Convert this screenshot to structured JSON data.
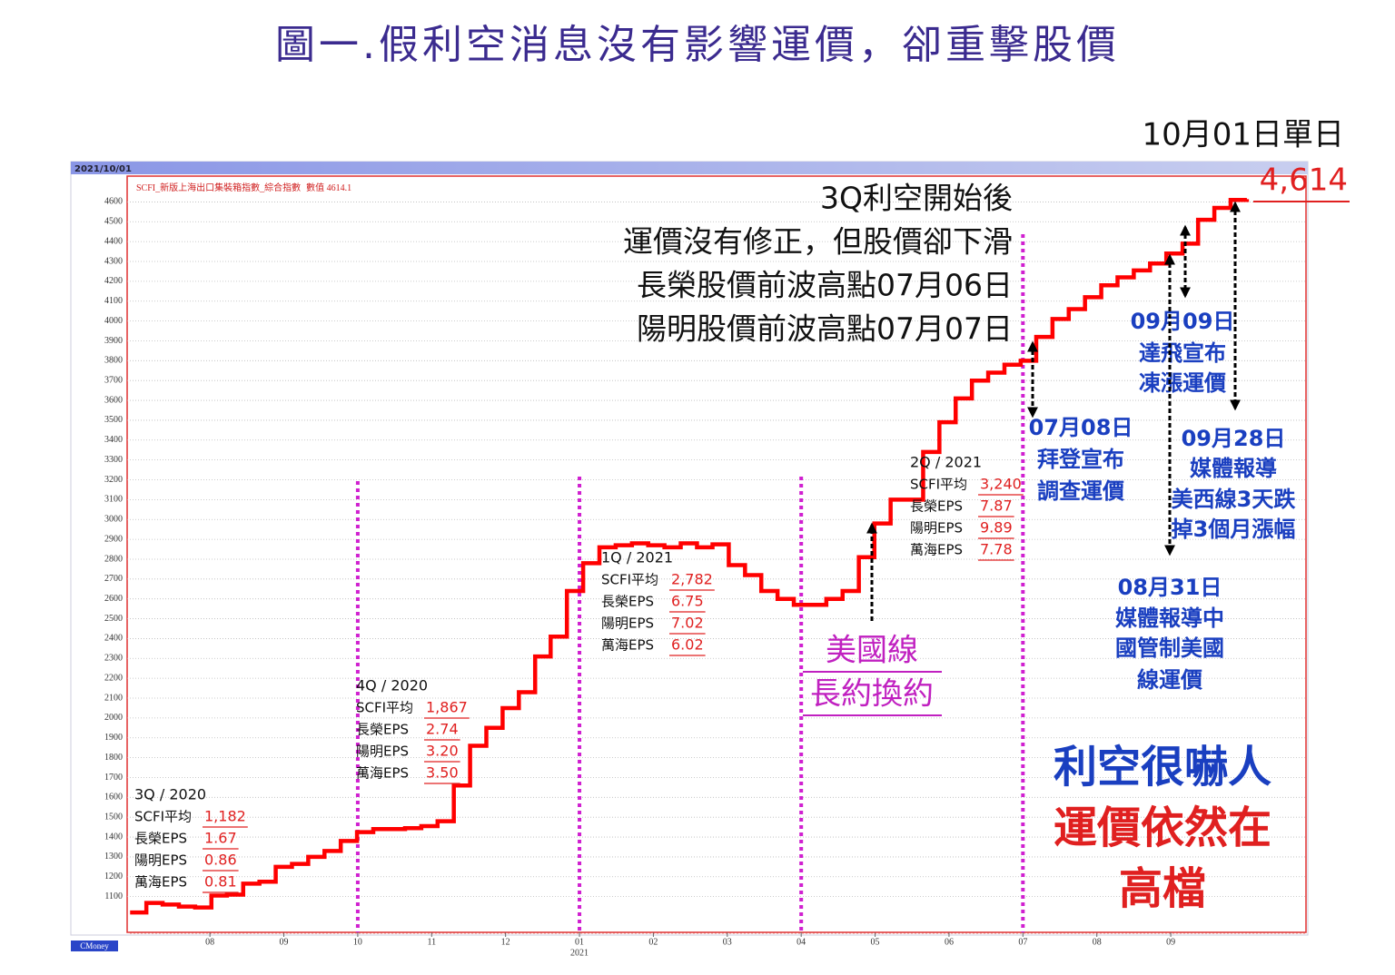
{
  "chart_data": {
    "type": "line",
    "title": "圖一.假利空消息沒有影響運價，卻重擊股價",
    "date_label": "2021/10/01",
    "latest_value_label": "數值 4614.1",
    "source": "CMoney",
    "x_year_label": "2021",
    "xlim": [
      -0.12,
      15.83
    ],
    "xticks": [
      {
        "value": 1,
        "label": "08"
      },
      {
        "value": 2,
        "label": "09"
      },
      {
        "value": 3,
        "label": "10"
      },
      {
        "value": 4,
        "label": "11"
      },
      {
        "value": 5,
        "label": "12"
      },
      {
        "value": 6,
        "label": "01"
      },
      {
        "value": 7,
        "label": "02"
      },
      {
        "value": 8,
        "label": "03"
      },
      {
        "value": 9,
        "label": "04"
      },
      {
        "value": 10,
        "label": "05"
      },
      {
        "value": 11,
        "label": "06"
      },
      {
        "value": 12,
        "label": "07"
      },
      {
        "value": 13,
        "label": "08"
      },
      {
        "value": 14,
        "label": "09"
      }
    ],
    "ylim": [
      920,
      4730
    ],
    "yticks": [
      1100,
      1200,
      1300,
      1400,
      1500,
      1600,
      1700,
      1800,
      1900,
      2000,
      2100,
      2200,
      2300,
      2400,
      2500,
      2600,
      2700,
      2800,
      2900,
      3000,
      3100,
      3200,
      3300,
      3400,
      3500,
      3600,
      3700,
      3800,
      3900,
      4000,
      4100,
      4200,
      4300,
      4400,
      4500,
      4600
    ],
    "grid": true,
    "x": [
      -0.08,
      0.14,
      0.36,
      0.58,
      0.8,
      1.02,
      1.23,
      1.45,
      1.67,
      1.89,
      2.11,
      2.33,
      2.55,
      2.77,
      2.99,
      3.21,
      3.42,
      3.64,
      3.86,
      4.08,
      4.3,
      4.52,
      4.74,
      4.96,
      5.18,
      5.4,
      5.61,
      5.83,
      6.05,
      6.27,
      6.49,
      6.71,
      6.93,
      7.15,
      7.37,
      7.59,
      7.8,
      8.02,
      8.24,
      8.46,
      8.68,
      8.9,
      9.12,
      9.34,
      9.56,
      9.78,
      9.99,
      10.21,
      10.43,
      10.65,
      10.87,
      11.09,
      11.31,
      11.53,
      11.75,
      11.97,
      12.18,
      12.4,
      12.62,
      12.84,
      13.06,
      13.28,
      13.5,
      13.72,
      13.94,
      14.16,
      14.37,
      14.59,
      14.81,
      15.03
    ],
    "series": [
      {
        "name": "SCFI_新版上海出口集裝箱指數_綜合指數",
        "color": "#ff0000",
        "values": [
          1020,
          1068,
          1060,
          1050,
          1045,
          1105,
          1110,
          1165,
          1175,
          1250,
          1265,
          1300,
          1330,
          1380,
          1425,
          1440,
          1440,
          1445,
          1455,
          1480,
          1660,
          1860,
          1950,
          2050,
          2130,
          2310,
          2410,
          2640,
          2780,
          2860,
          2870,
          2880,
          2870,
          2860,
          2880,
          2860,
          2875,
          2770,
          2720,
          2640,
          2600,
          2570,
          2570,
          2600,
          2640,
          2810,
          2980,
          3100,
          3100,
          3340,
          3490,
          3610,
          3700,
          3740,
          3780,
          3800,
          3920,
          4010,
          4060,
          4120,
          4180,
          4220,
          4255,
          4290,
          4340,
          4390,
          4510,
          4570,
          4610,
          4614
        ]
      }
    ],
    "annotations": {
      "callout_date": "10月01日單日",
      "callout_value": "4,614",
      "headline": [
        "3Q利空開始後",
        "運價沒有修正，但股價卻下滑",
        "長榮股價前波高點07月06日",
        "陽明股價前波高點07月07日"
      ],
      "eps_blocks": [
        {
          "quarter": "3Q / 2020",
          "rows": [
            {
              "label": "SCFI平均",
              "value": "1,182"
            },
            {
              "label": "長榮EPS",
              "value": "1.67"
            },
            {
              "label": "陽明EPS",
              "value": "0.86"
            },
            {
              "label": "萬海EPS",
              "value": "0.81"
            }
          ]
        },
        {
          "quarter": "4Q / 2020",
          "rows": [
            {
              "label": "SCFI平均",
              "value": "1,867"
            },
            {
              "label": "長榮EPS",
              "value": "2.74"
            },
            {
              "label": "陽明EPS",
              "value": "3.20"
            },
            {
              "label": "萬海EPS",
              "value": "3.50"
            }
          ]
        },
        {
          "quarter": "1Q / 2021",
          "rows": [
            {
              "label": "SCFI平均",
              "value": "2,782"
            },
            {
              "label": "長榮EPS",
              "value": "6.75"
            },
            {
              "label": "陽明EPS",
              "value": "7.02"
            },
            {
              "label": "萬海EPS",
              "value": "6.02"
            }
          ]
        },
        {
          "quarter": "2Q / 2021",
          "rows": [
            {
              "label": "SCFI平均",
              "value": "3,240"
            },
            {
              "label": "長榮EPS",
              "value": "7.87"
            },
            {
              "label": "陽明EPS",
              "value": "9.89"
            },
            {
              "label": "萬海EPS",
              "value": "7.78"
            }
          ]
        }
      ],
      "us_line": [
        "美國線",
        "長約換約"
      ],
      "notes": [
        [
          "07月08日",
          "拜登宣布",
          "調查運價"
        ],
        [
          "09月09日",
          "達飛宣布",
          "凍漲運價"
        ],
        [
          "09月28日",
          "媒體報導",
          "美西線3天跌",
          "掉3個月漲幅"
        ],
        [
          "08月31日",
          "媒體報導中",
          "國管制美國",
          "線運價"
        ]
      ],
      "conclusion": [
        "利空很嚇人",
        "運價依然在",
        "高檔"
      ]
    }
  }
}
